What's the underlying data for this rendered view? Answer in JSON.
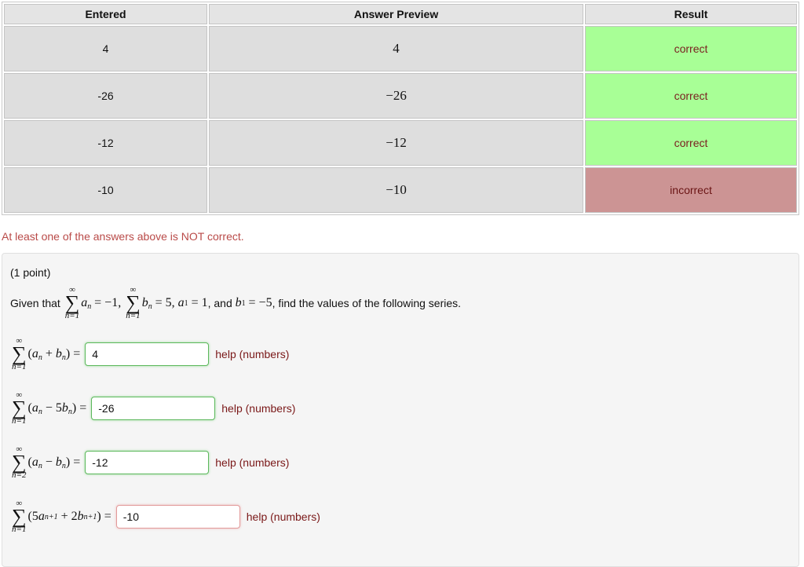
{
  "table": {
    "headers": {
      "entered": "Entered",
      "preview": "Answer Preview",
      "result": "Result"
    },
    "rows": [
      {
        "entered": "4",
        "preview": "4",
        "result": "correct"
      },
      {
        "entered": "-26",
        "preview": "−26",
        "result": "correct"
      },
      {
        "entered": "-12",
        "preview": "−12",
        "result": "correct"
      },
      {
        "entered": "-10",
        "preview": "−10",
        "result": "incorrect"
      }
    ]
  },
  "summary": "At least one of the answers above is NOT correct.",
  "problem": {
    "points": "(1 point)",
    "given_prefix": "Given that",
    "given_and": ", and",
    "given_suffix": ", find the values of the following series.",
    "sum_upper": "∞",
    "sum_lower_1": "n=1",
    "sum_lower_2": "n=2",
    "parts": [
      {
        "value": "4",
        "status": "correct"
      },
      {
        "value": "-26",
        "status": "correct"
      },
      {
        "value": "-12",
        "status": "correct"
      },
      {
        "value": "-10",
        "status": "incorrect"
      }
    ],
    "help_label": "help (numbers)"
  },
  "colors": {
    "correct": "#a8ff96",
    "incorrect": "#cc9494",
    "summary_text": "#b94a48",
    "help_link": "#7a1818"
  }
}
